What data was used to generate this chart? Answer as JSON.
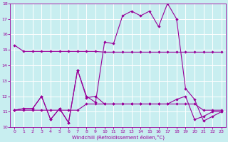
{
  "title": "",
  "xlabel": "Windchill (Refroidissement éolien,°C)",
  "ylabel": "",
  "background_color": "#c8eef0",
  "line_color": "#990099",
  "grid_color": "#ffffff",
  "x": [
    0,
    1,
    2,
    3,
    4,
    5,
    6,
    7,
    8,
    9,
    10,
    11,
    12,
    13,
    14,
    15,
    16,
    17,
    18,
    19,
    20,
    21,
    22,
    23
  ],
  "series1": [
    15.3,
    14.9,
    14.9,
    14.9,
    14.9,
    14.9,
    14.9,
    14.9,
    14.9,
    14.9,
    14.85,
    14.85,
    14.85,
    14.85,
    14.85,
    14.85,
    14.85,
    14.85,
    14.85,
    14.85,
    14.85,
    14.85,
    14.85,
    14.85
  ],
  "series2": [
    11.1,
    11.2,
    11.2,
    12.0,
    10.5,
    11.2,
    10.3,
    13.7,
    11.9,
    12.0,
    11.5,
    11.5,
    11.5,
    11.5,
    11.5,
    11.5,
    11.5,
    11.5,
    11.8,
    12.0,
    10.5,
    10.7,
    11.0,
    11.0
  ],
  "series3": [
    11.1,
    11.2,
    11.2,
    12.0,
    10.5,
    11.2,
    10.3,
    13.7,
    12.0,
    11.6,
    15.5,
    15.4,
    17.2,
    17.5,
    17.2,
    17.5,
    16.5,
    18.0,
    17.0,
    12.5,
    11.8,
    10.4,
    10.7,
    11.0
  ],
  "series4": [
    11.1,
    11.1,
    11.1,
    11.1,
    11.1,
    11.1,
    11.1,
    11.1,
    11.5,
    11.5,
    11.5,
    11.5,
    11.5,
    11.5,
    11.5,
    11.5,
    11.5,
    11.5,
    11.5,
    11.5,
    11.5,
    11.1,
    11.1,
    11.1
  ],
  "ylim": [
    10,
    18
  ],
  "xlim": [
    -0.5,
    23.5
  ],
  "yticks": [
    10,
    11,
    12,
    13,
    14,
    15,
    16,
    17,
    18
  ],
  "xticks": [
    0,
    1,
    2,
    3,
    4,
    5,
    6,
    7,
    8,
    9,
    10,
    11,
    12,
    13,
    14,
    15,
    16,
    17,
    18,
    19,
    20,
    21,
    22,
    23
  ],
  "marker": "D",
  "markersize": 2.2,
  "linewidth": 0.8
}
